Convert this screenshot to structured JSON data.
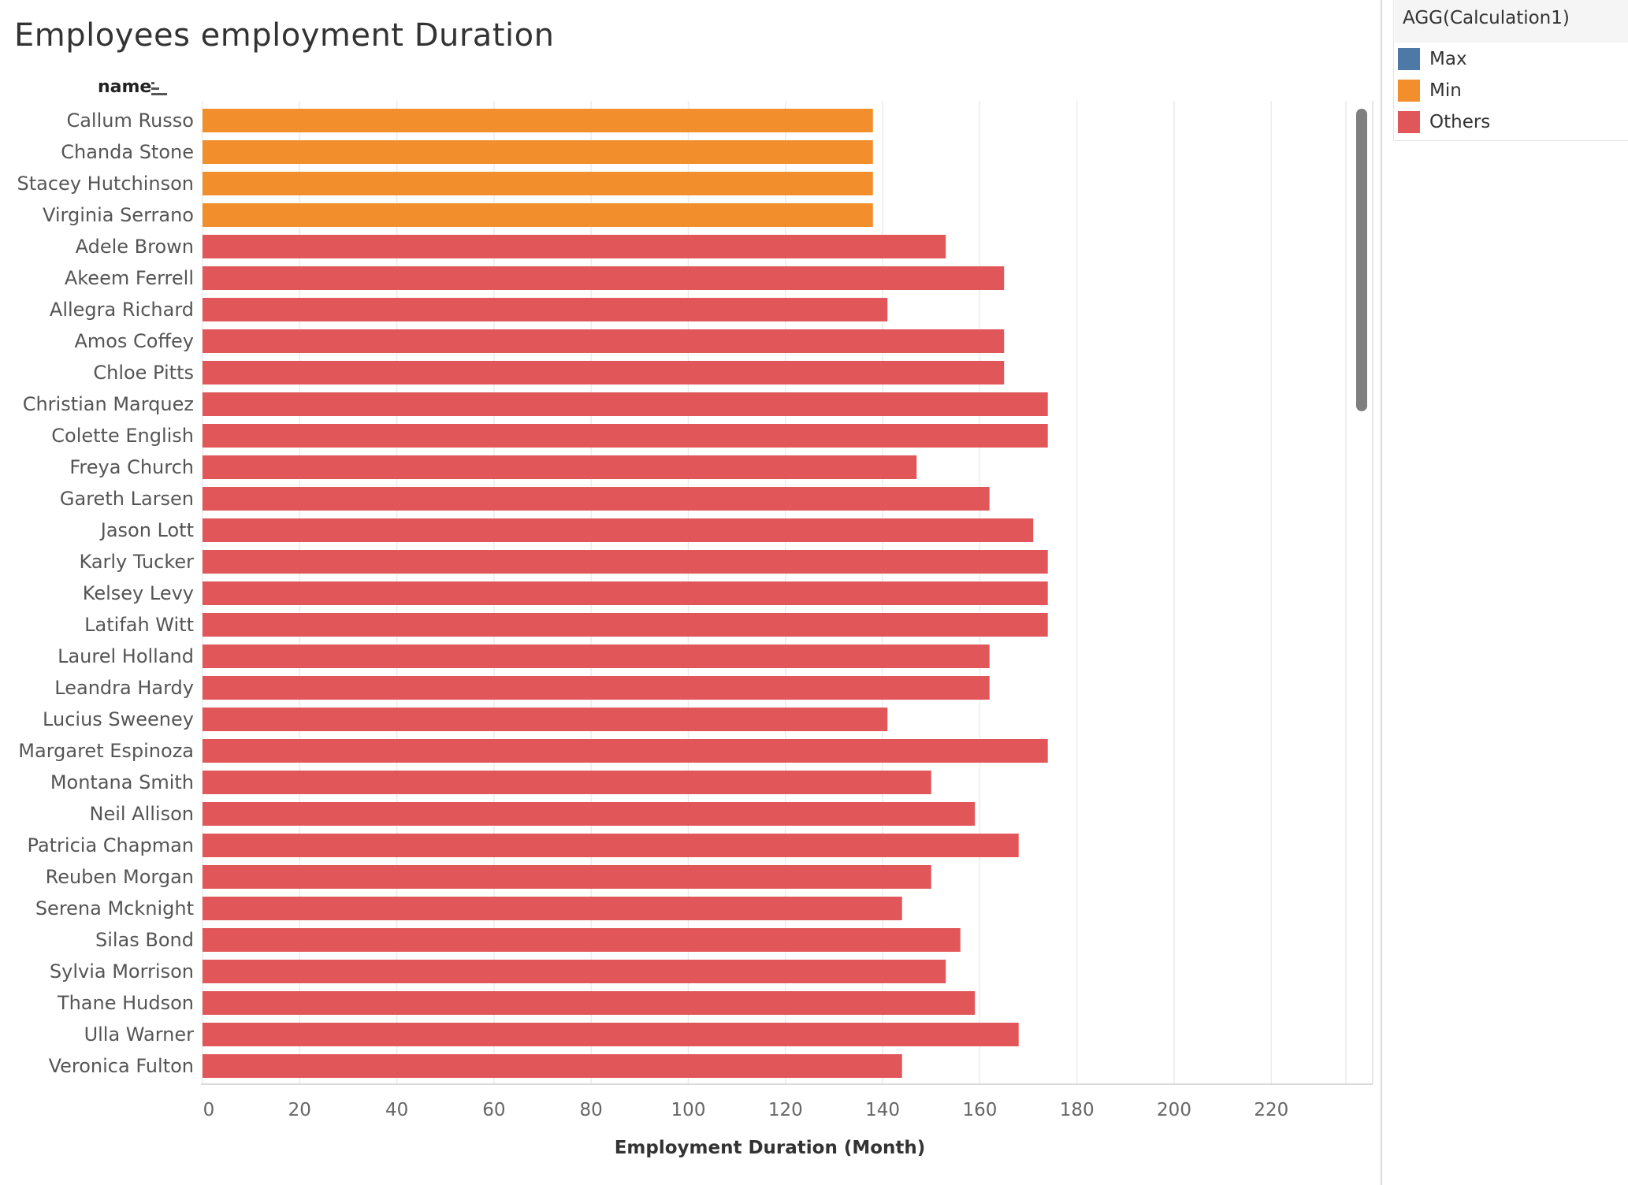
{
  "title": "Employees employment Duration",
  "row_header": "name",
  "legend": {
    "title": "AGG(Calculation1)",
    "items": [
      {
        "label": "Max",
        "color": "#4e79a7"
      },
      {
        "label": "Min",
        "color": "#f28e2b"
      },
      {
        "label": "Others",
        "color": "#e15759"
      }
    ]
  },
  "chart_data": {
    "type": "bar",
    "orientation": "horizontal",
    "title": "Employees employment Duration",
    "xlabel": "Employment Duration (Month)",
    "ylabel": "name",
    "xlim": [
      0,
      240
    ],
    "xticks": [
      0,
      20,
      40,
      60,
      80,
      100,
      120,
      140,
      160,
      180,
      200,
      220
    ],
    "grid": true,
    "legend_position": "right",
    "categories": [
      "Callum Russo",
      "Chanda Stone",
      "Stacey Hutchinson",
      "Virginia Serrano",
      "Adele Brown",
      "Akeem Ferrell",
      "Allegra Richard",
      "Amos Coffey",
      "Chloe Pitts",
      "Christian Marquez",
      "Colette English",
      "Freya Church",
      "Gareth Larsen",
      "Jason Lott",
      "Karly Tucker",
      "Kelsey Levy",
      "Latifah Witt",
      "Laurel Holland",
      "Leandra Hardy",
      "Lucius Sweeney",
      "Margaret Espinoza",
      "Montana Smith",
      "Neil Allison",
      "Patricia Chapman",
      "Reuben Morgan",
      "Serena Mcknight",
      "Silas Bond",
      "Sylvia Morrison",
      "Thane Hudson",
      "Ulla Warner",
      "Veronica Fulton"
    ],
    "values": [
      138,
      138,
      138,
      138,
      153,
      165,
      141,
      165,
      165,
      174,
      174,
      147,
      162,
      171,
      174,
      174,
      174,
      162,
      162,
      141,
      174,
      150,
      159,
      168,
      150,
      144,
      156,
      153,
      159,
      168,
      144
    ],
    "groups": [
      "Min",
      "Min",
      "Min",
      "Min",
      "Others",
      "Others",
      "Others",
      "Others",
      "Others",
      "Others",
      "Others",
      "Others",
      "Others",
      "Others",
      "Others",
      "Others",
      "Others",
      "Others",
      "Others",
      "Others",
      "Others",
      "Others",
      "Others",
      "Others",
      "Others",
      "Others",
      "Others",
      "Others",
      "Others",
      "Others",
      "Others"
    ]
  }
}
